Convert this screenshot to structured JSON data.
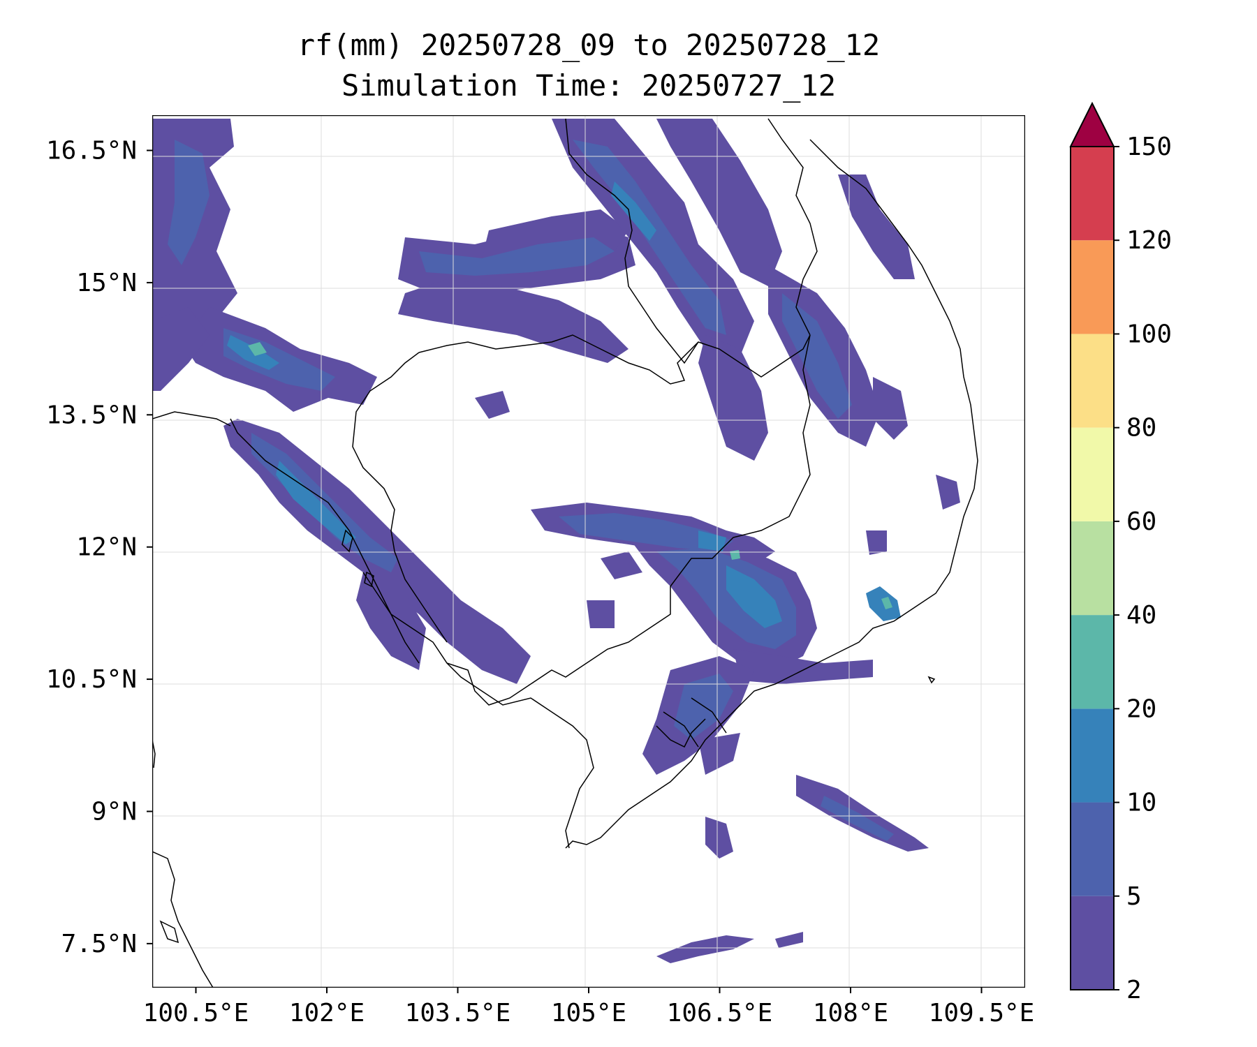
{
  "title": {
    "line1": "rf(mm) 20250728_09 to 20250728_12",
    "line2": "Simulation Time: 20250727_12"
  },
  "map": {
    "lon_range": [
      100.0,
      110.0
    ],
    "lat_range": [
      7.0,
      16.9
    ],
    "x_ticks": [
      {
        "value": 100.5,
        "label": "100.5°E"
      },
      {
        "value": 102.0,
        "label": "102°E"
      },
      {
        "value": 103.5,
        "label": "103.5°E"
      },
      {
        "value": 105.0,
        "label": "105°E"
      },
      {
        "value": 106.5,
        "label": "106.5°E"
      },
      {
        "value": 108.0,
        "label": "108°E"
      },
      {
        "value": 109.5,
        "label": "109.5°E"
      }
    ],
    "y_ticks": [
      {
        "value": 16.5,
        "label": "16.5°N"
      },
      {
        "value": 15.0,
        "label": "15°N"
      },
      {
        "value": 13.5,
        "label": "13.5°N"
      },
      {
        "value": 12.0,
        "label": "12°N"
      },
      {
        "value": 10.5,
        "label": "10.5°N"
      },
      {
        "value": 9.0,
        "label": "9°N"
      },
      {
        "value": 7.5,
        "label": "7.5°N"
      }
    ],
    "grid": true
  },
  "colorbar": {
    "levels": [
      "2",
      "5",
      "10",
      "20",
      "40",
      "60",
      "80",
      "100",
      "120",
      "150"
    ],
    "colors": [
      "#5e4fa2",
      "#4d62ad",
      "#3682ba",
      "#5cb7a9",
      "#b8e0a1",
      "#f1f9a9",
      "#fcdf87",
      "#f99a57",
      "#d53e4f"
    ],
    "extend_color": "#9e0142",
    "extend": "max"
  }
}
